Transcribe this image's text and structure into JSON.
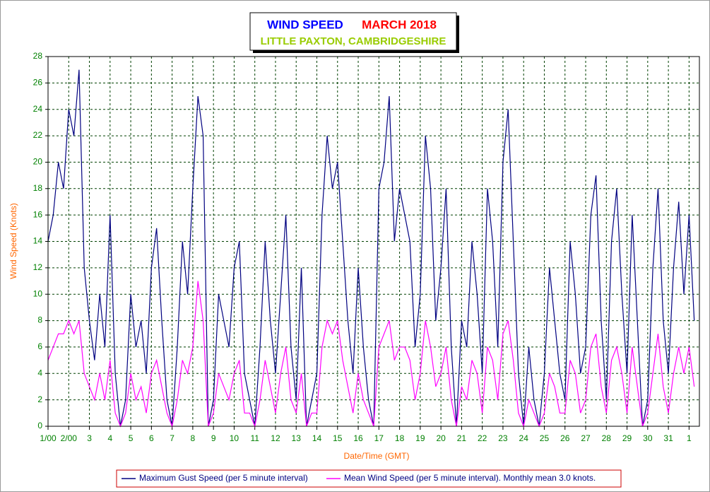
{
  "chart_data": {
    "type": "line",
    "title": "WIND SPEED",
    "title_date": "MARCH 2018",
    "subtitle": "LITTLE PAXTON, CAMBRIDGESHIRE",
    "xlabel": "Date/Time (GMT)",
    "ylabel": "Wind Speed (Knots)",
    "x": [
      1,
      1.25,
      1.5,
      1.75,
      2,
      2.25,
      2.5,
      2.75,
      3,
      3.25,
      3.5,
      3.75,
      4,
      4.25,
      4.5,
      4.75,
      5,
      5.25,
      5.5,
      5.75,
      6,
      6.25,
      6.5,
      6.75,
      7,
      7.25,
      7.5,
      7.75,
      8,
      8.25,
      8.5,
      8.75,
      9,
      9.25,
      9.5,
      9.75,
      10,
      10.25,
      10.5,
      10.75,
      11,
      11.25,
      11.5,
      11.75,
      12,
      12.25,
      12.5,
      12.75,
      13,
      13.25,
      13.5,
      13.75,
      14,
      14.25,
      14.5,
      14.75,
      15,
      15.25,
      15.5,
      15.75,
      16,
      16.25,
      16.5,
      16.75,
      17,
      17.25,
      17.5,
      17.75,
      18,
      18.25,
      18.5,
      18.75,
      19,
      19.25,
      19.5,
      19.75,
      20,
      20.25,
      20.5,
      20.75,
      21,
      21.25,
      21.5,
      21.75,
      22,
      22.25,
      22.5,
      22.75,
      23,
      23.25,
      23.5,
      23.75,
      24,
      24.25,
      24.5,
      24.75,
      25,
      25.25,
      25.5,
      25.75,
      26,
      26.25,
      26.5,
      26.75,
      27,
      27.25,
      27.5,
      27.75,
      28,
      28.25,
      28.5,
      28.75,
      29,
      29.25,
      29.5,
      29.75,
      30,
      30.25,
      30.5,
      30.75,
      31,
      31.25,
      31.5,
      31.75,
      32,
      32.25
    ],
    "series": [
      {
        "name": "Maximum Gust Speed (per 5 minute interval)",
        "color": "#000080",
        "values": [
          14,
          16,
          20,
          18,
          24,
          22,
          27,
          12,
          8,
          5,
          10,
          6,
          16,
          4,
          0,
          2,
          10,
          6,
          8,
          4,
          12,
          15,
          8,
          2,
          0,
          6,
          14,
          10,
          18,
          25,
          22,
          0,
          2,
          10,
          8,
          6,
          12,
          14,
          4,
          2,
          0,
          6,
          14,
          8,
          4,
          10,
          16,
          6,
          2,
          12,
          0,
          2,
          4,
          16,
          22,
          18,
          20,
          14,
          8,
          4,
          12,
          6,
          2,
          0,
          18,
          20,
          25,
          14,
          18,
          16,
          14,
          6,
          10,
          22,
          18,
          8,
          12,
          18,
          6,
          0,
          8,
          6,
          14,
          10,
          4,
          18,
          14,
          6,
          20,
          24,
          14,
          4,
          0,
          6,
          2,
          0,
          4,
          12,
          8,
          4,
          2,
          14,
          10,
          4,
          6,
          16,
          19,
          8,
          2,
          14,
          18,
          10,
          4,
          16,
          8,
          0,
          2,
          12,
          18,
          8,
          4,
          12,
          17,
          10,
          16,
          8
        ]
      },
      {
        "name": "Mean Wind Speed (per 5 minute interval). Monthly mean 3.0 knots.",
        "color": "#ff00ff",
        "values": [
          5,
          6,
          7,
          7,
          8,
          7,
          8,
          4,
          3,
          2,
          4,
          2,
          5,
          1,
          0,
          1,
          4,
          2,
          3,
          1,
          4,
          5,
          3,
          1,
          0,
          2,
          5,
          4,
          6,
          11,
          8,
          0,
          1,
          4,
          3,
          2,
          4,
          5,
          1,
          1,
          0,
          2,
          5,
          3,
          1,
          4,
          6,
          2,
          1,
          4,
          0,
          1,
          1,
          6,
          8,
          7,
          8,
          5,
          3,
          1,
          4,
          2,
          1,
          0,
          6,
          7,
          8,
          5,
          6,
          6,
          5,
          2,
          4,
          8,
          6,
          3,
          4,
          6,
          2,
          0,
          3,
          2,
          5,
          4,
          1,
          6,
          5,
          2,
          7,
          8,
          5,
          1,
          0,
          2,
          1,
          0,
          1,
          4,
          3,
          1,
          1,
          5,
          4,
          1,
          2,
          6,
          7,
          3,
          1,
          5,
          6,
          4,
          1,
          6,
          3,
          0,
          1,
          4,
          7,
          3,
          1,
          4,
          6,
          4,
          6,
          3
        ]
      }
    ],
    "xlim": [
      1,
      32.5
    ],
    "xticks": [
      {
        "value": 1,
        "label": "1/00"
      },
      {
        "value": 2,
        "label": "2/00"
      },
      3,
      4,
      5,
      6,
      7,
      8,
      9,
      10,
      11,
      12,
      13,
      14,
      15,
      16,
      17,
      18,
      19,
      20,
      21,
      22,
      23,
      24,
      25,
      26,
      27,
      28,
      29,
      30,
      31,
      {
        "value": 32,
        "label": "1"
      }
    ],
    "ylim": [
      0,
      28
    ],
    "yticks": [
      0,
      2,
      4,
      6,
      8,
      10,
      12,
      14,
      16,
      18,
      20,
      22,
      24,
      26,
      28
    ],
    "grid": true
  }
}
